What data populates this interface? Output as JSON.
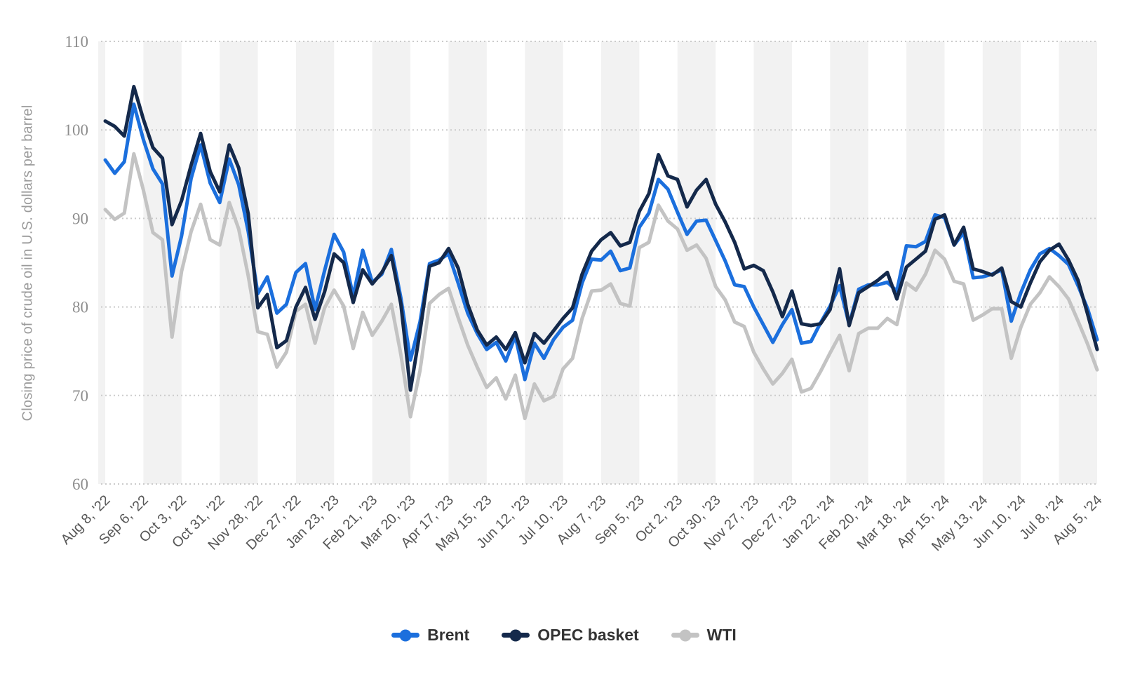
{
  "style": {
    "background": "#ffffff",
    "band_color": "#f2f2f2",
    "grid_color": "#cbcbcb",
    "ytick_color": "#8e8e8e",
    "xtick_color": "#575757",
    "axis_title_color": "#9b9b9b",
    "legend_text_color": "#333333"
  },
  "chart_data": {
    "type": "line",
    "title": "",
    "ylabel": "Closing price of crude oil in U.S. dollars per barrel",
    "xlabel": "",
    "ylim": [
      60,
      110
    ],
    "yticks": [
      60,
      70,
      80,
      90,
      100,
      110
    ],
    "grid": "horizontal-dotted",
    "background_bands": "alternating vertical 4-week stripes",
    "legend_position": "bottom-center",
    "frequency": "weekly",
    "points_per_label": 4,
    "x_tick_labels": [
      "Aug 8, '22",
      "Sep 6, '22",
      "Oct 3, '22",
      "Oct 31, '22",
      "Nov 28, '22",
      "Dec 27, '22",
      "Jan 23, '23",
      "Feb 21, '23",
      "Mar 20, '23",
      "Apr 17, '23",
      "May 15, '23",
      "Jun 12, '23",
      "Jul 10, '23",
      "Aug 7, '23",
      "Sep 5, '23",
      "Oct 2, '23",
      "Oct 30, '23",
      "Nov 27, '23",
      "Dec 27, '23",
      "Jan 22, '24",
      "Feb 20, '24",
      "Mar 18, '24",
      "Apr 15, '24",
      "May 13, '24",
      "Jun 10, '24",
      "Jul 8, '24",
      "Aug 5, '24"
    ],
    "series": [
      {
        "name": "Brent",
        "color": "#1b6fdd",
        "values": [
          96.6,
          95.1,
          96.4,
          102.9,
          98.9,
          95.6,
          93.9,
          83.5,
          88.0,
          94.5,
          98.3,
          94.0,
          91.8,
          96.7,
          93.8,
          88.5,
          81.5,
          83.4,
          79.3,
          80.3,
          83.9,
          84.9,
          79.7,
          84.1,
          88.2,
          86.2,
          81.2,
          86.4,
          82.8,
          83.7,
          86.5,
          81.0,
          74.0,
          78.3,
          84.9,
          85.3,
          86.0,
          82.7,
          79.3,
          77.0,
          75.2,
          76.0,
          73.9,
          76.7,
          71.8,
          75.9,
          74.2,
          76.3,
          77.7,
          78.5,
          82.7,
          85.4,
          85.3,
          86.3,
          84.1,
          84.4,
          89.0,
          90.6,
          94.4,
          93.3,
          90.7,
          88.2,
          89.7,
          89.8,
          87.5,
          85.2,
          82.5,
          82.3,
          80.0,
          78.0,
          76.0,
          78.0,
          79.7,
          75.9,
          76.1,
          78.2,
          80.1,
          82.4,
          78.0,
          82.0,
          82.5,
          82.5,
          82.8,
          81.8,
          86.9,
          86.8,
          87.4,
          90.4,
          90.1,
          87.0,
          88.4,
          83.3,
          83.4,
          83.7,
          84.2,
          78.4,
          81.6,
          84.2,
          86.0,
          86.6,
          85.8,
          84.8,
          82.4,
          79.8,
          76.3
        ]
      },
      {
        "name": "OPEC basket",
        "color": "#14294b",
        "values": [
          101.0,
          100.4,
          99.3,
          104.9,
          101.2,
          98.0,
          96.8,
          89.3,
          92.0,
          96.0,
          99.6,
          95.3,
          93.0,
          98.3,
          95.7,
          90.5,
          79.9,
          81.4,
          75.4,
          76.2,
          80.0,
          82.2,
          78.6,
          81.7,
          86.0,
          85.0,
          80.5,
          84.2,
          82.6,
          83.9,
          85.8,
          80.3,
          70.6,
          77.2,
          84.6,
          85.0,
          86.6,
          84.4,
          80.3,
          77.4,
          75.7,
          76.6,
          75.2,
          77.1,
          73.7,
          77.0,
          75.9,
          77.3,
          78.7,
          79.9,
          83.7,
          86.3,
          87.6,
          88.4,
          86.9,
          87.3,
          90.8,
          92.8,
          97.2,
          94.8,
          94.4,
          91.3,
          93.2,
          94.4,
          91.6,
          89.6,
          87.3,
          84.3,
          84.7,
          84.1,
          81.7,
          78.9,
          81.8,
          78.1,
          77.9,
          78.1,
          79.7,
          84.3,
          77.9,
          81.6,
          82.3,
          83.0,
          83.9,
          80.9,
          84.5,
          85.4,
          86.3,
          89.9,
          90.4,
          87.0,
          89.0,
          84.3,
          84.0,
          83.6,
          84.4,
          80.6,
          80.0,
          82.7,
          85.1,
          86.4,
          87.1,
          85.3,
          83.0,
          79.2,
          75.2
        ]
      },
      {
        "name": "WTI",
        "color": "#c3c3c3",
        "values": [
          91.0,
          89.9,
          90.6,
          97.3,
          93.2,
          88.4,
          87.6,
          76.6,
          84.0,
          88.5,
          91.6,
          87.6,
          87.0,
          91.8,
          88.8,
          83.5,
          77.2,
          76.9,
          73.2,
          74.9,
          79.5,
          80.3,
          75.9,
          79.9,
          81.9,
          80.1,
          75.3,
          79.4,
          76.8,
          78.4,
          80.3,
          74.6,
          67.6,
          72.8,
          80.4,
          81.4,
          82.1,
          78.8,
          75.7,
          73.2,
          70.9,
          72.0,
          69.6,
          72.3,
          67.4,
          71.3,
          69.4,
          69.9,
          73.0,
          74.2,
          78.7,
          81.8,
          81.9,
          82.6,
          80.4,
          80.1,
          86.7,
          87.3,
          91.5,
          89.7,
          88.8,
          86.4,
          87.0,
          85.5,
          82.3,
          80.8,
          78.3,
          77.8,
          74.9,
          73.0,
          71.3,
          72.5,
          74.1,
          70.4,
          70.8,
          72.7,
          74.8,
          76.8,
          72.8,
          77.0,
          77.6,
          77.6,
          78.7,
          78.0,
          82.7,
          81.9,
          83.7,
          86.4,
          85.4,
          82.9,
          82.6,
          78.5,
          79.1,
          79.8,
          79.8,
          74.2,
          77.7,
          80.3,
          81.6,
          83.4,
          82.3,
          80.9,
          78.4,
          75.8,
          72.9
        ]
      }
    ]
  }
}
